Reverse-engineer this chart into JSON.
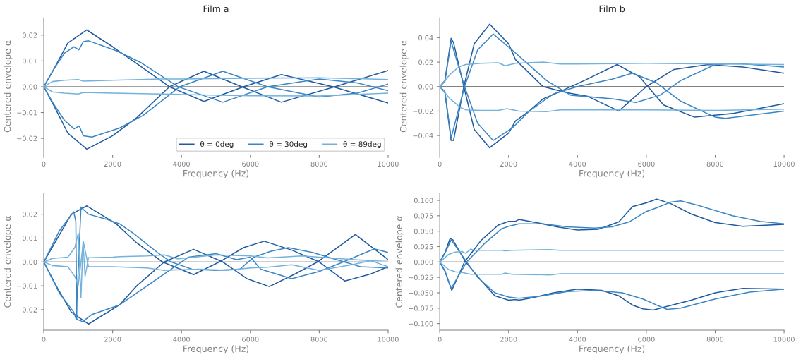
{
  "chart_data": [
    {
      "type": "line",
      "title": "Film a",
      "xlabel": "Frequency (Hz)",
      "ylabel": "Centered envelope α",
      "xlim": [
        0,
        10000
      ],
      "xticks": [
        0,
        2000,
        4000,
        6000,
        8000,
        10000
      ],
      "ylim": [
        -0.0264,
        0.0267
      ],
      "yticks": [
        {
          "value": -0.02,
          "label": "−0.02"
        },
        {
          "value": -0.01,
          "label": "−0.01"
        },
        {
          "value": 0,
          "label": "0.00"
        },
        {
          "value": 0.01,
          "label": "0.01"
        },
        {
          "value": 0.02,
          "label": "0.02"
        }
      ],
      "ref_lines": [
        {
          "axis": "y",
          "value": 0,
          "color": "#808080"
        }
      ],
      "grid": false,
      "legend": "lower right",
      "series": [
        {
          "name": "θ = 0deg",
          "color": "#1f5a9e",
          "x": [
            0,
            300,
            700,
            1250,
            2000,
            2700,
            3650,
            4650,
            5800,
            6900,
            8400,
            10000
          ],
          "values": [
            0,
            0.007,
            0.017,
            0.022,
            0.0155,
            0.009,
            0,
            -0.0057,
            0,
            0.0047,
            0,
            -0.0063
          ]
        },
        {
          "color": "#1f5a9e",
          "x": [
            0,
            300,
            700,
            1250,
            2000,
            2700,
            3650,
            4650,
            5750,
            6900,
            8450,
            10000
          ],
          "values": [
            0,
            -0.0075,
            -0.018,
            -0.0242,
            -0.019,
            -0.012,
            0,
            0.006,
            0,
            -0.006,
            0,
            0.0063
          ]
        },
        {
          "name": "θ = 30deg",
          "color": "#3a86c4",
          "x": [
            0,
            300,
            600,
            870,
            1020,
            1150,
            1300,
            2100,
            2800,
            3900,
            5200,
            6500,
            8000,
            9100,
            10000
          ],
          "values": [
            0,
            0.007,
            0.013,
            0.0155,
            0.0143,
            0.0175,
            0.0178,
            0.014,
            0.0095,
            0,
            -0.006,
            0,
            0.003,
            0.0015,
            -0.0015
          ]
        },
        {
          "color": "#3a86c4",
          "x": [
            0,
            300,
            600,
            880,
            1030,
            1150,
            1400,
            2200,
            2900,
            3950,
            5200,
            6500,
            8000,
            9100,
            10000
          ],
          "values": [
            0,
            -0.007,
            -0.013,
            -0.0163,
            -0.0152,
            -0.019,
            -0.0195,
            -0.016,
            -0.011,
            0,
            0.006,
            0,
            -0.004,
            -0.0025,
            0.001
          ]
        },
        {
          "name": "θ = 89deg",
          "color": "#73b2dc",
          "x": [
            0,
            250,
            600,
            1000,
            1150,
            2000,
            3400,
            4000,
            6000,
            8000,
            10000
          ],
          "values": [
            0,
            0.002,
            0.0025,
            0.0028,
            0.0022,
            0.0025,
            0.003,
            0.003,
            0.0033,
            0.0035,
            0.0028
          ]
        },
        {
          "color": "#73b2dc",
          "x": [
            0,
            250,
            600,
            1000,
            1150,
            2000,
            3400,
            4000,
            6000,
            8000,
            10000
          ],
          "values": [
            0,
            -0.002,
            -0.0025,
            -0.0028,
            -0.0022,
            -0.0025,
            -0.0028,
            -0.003,
            -0.0035,
            -0.0036,
            -0.0025
          ]
        }
      ]
    },
    {
      "type": "line",
      "title": "Film b",
      "xlabel": "Frequency (Hz)",
      "ylabel": "Centered envelope α",
      "xlim": [
        0,
        10000
      ],
      "xticks": [
        0,
        2000,
        4000,
        6000,
        8000,
        10000
      ],
      "ylim": [
        -0.0558,
        0.0562
      ],
      "yticks": [
        {
          "value": -0.04,
          "label": "−0.04"
        },
        {
          "value": -0.02,
          "label": "−0.02"
        },
        {
          "value": 0,
          "label": "0.00"
        },
        {
          "value": 0.02,
          "label": "0.02"
        },
        {
          "value": 0.04,
          "label": "0.04"
        }
      ],
      "ref_lines": [
        {
          "axis": "y",
          "value": 0,
          "color": "#808080"
        }
      ],
      "grid": false,
      "series": [
        {
          "color": "#1f5a9e",
          "x": [
            0,
            150,
            330,
            400,
            700,
            1000,
            1450,
            2000,
            2200,
            2600,
            3000,
            3500,
            4200,
            5150,
            5800,
            6500,
            7400,
            8500,
            10000
          ],
          "values": [
            0,
            0.005,
            0.0395,
            0.036,
            0,
            -0.035,
            -0.05,
            -0.038,
            -0.028,
            -0.02,
            -0.01,
            -0.004,
            0.005,
            0.018,
            0.008,
            -0.015,
            -0.025,
            -0.022,
            -0.014
          ]
        },
        {
          "color": "#1f5a9e",
          "x": [
            0,
            150,
            330,
            400,
            700,
            1000,
            1450,
            2000,
            2200,
            3000,
            3700,
            4300,
            5200,
            6000,
            6800,
            7800,
            8800,
            10000
          ],
          "values": [
            0,
            -0.005,
            -0.044,
            -0.044,
            0,
            0.035,
            0.051,
            0.035,
            0.022,
            0,
            -0.005,
            -0.008,
            -0.02,
            0,
            0.014,
            0.018,
            0.016,
            0.011
          ]
        },
        {
          "color": "#3a86c4",
          "x": [
            0,
            150,
            330,
            720,
            1100,
            1550,
            2100,
            2600,
            3300,
            4000,
            5000,
            5600,
            6300,
            7000,
            8000,
            8300,
            10000
          ],
          "values": [
            0,
            0.004,
            0.037,
            0,
            -0.03,
            -0.044,
            -0.034,
            -0.02,
            -0.006,
            0,
            0.006,
            0.011,
            0.003,
            -0.012,
            -0.025,
            -0.026,
            -0.02
          ]
        },
        {
          "color": "#3a86c4",
          "x": [
            0,
            150,
            330,
            720,
            1100,
            1550,
            2100,
            2500,
            3100,
            3800,
            5000,
            5700,
            6400,
            7000,
            8000,
            8600,
            10000
          ],
          "values": [
            0,
            -0.004,
            -0.042,
            0,
            0.03,
            0.043,
            0.03,
            0.02,
            0.005,
            -0.007,
            -0.01,
            -0.013,
            -0.007,
            0.005,
            0.018,
            0.019,
            0.016
          ]
        },
        {
          "color": "#73b2dc",
          "x": [
            0,
            300,
            550,
            750,
            1200,
            1700,
            1900,
            2200,
            3000,
            3500,
            4000,
            6000,
            8000,
            10000
          ],
          "values": [
            0,
            0.01,
            0.016,
            0.018,
            0.019,
            0.0195,
            0.017,
            0.019,
            0.02,
            0.0185,
            0.0185,
            0.019,
            0.0185,
            0.018
          ]
        },
        {
          "color": "#73b2dc",
          "x": [
            0,
            300,
            600,
            750,
            1200,
            1700,
            1950,
            2300,
            3100,
            3500,
            6000,
            8000,
            10000
          ],
          "values": [
            0,
            -0.01,
            -0.017,
            -0.019,
            -0.0195,
            -0.0195,
            -0.018,
            -0.02,
            -0.0205,
            -0.019,
            -0.019,
            -0.0195,
            -0.0185
          ]
        }
      ]
    },
    {
      "type": "line",
      "xlabel": "Frequency (Hz)",
      "ylabel": "Centered envelope α",
      "xlim": [
        0,
        10000
      ],
      "xticks": [
        0,
        2000,
        4000,
        6000,
        8000,
        10000
      ],
      "ylim": [
        -0.0286,
        0.0288
      ],
      "yticks": [
        {
          "value": -0.02,
          "label": "−0.02"
        },
        {
          "value": -0.01,
          "label": "−0.01"
        },
        {
          "value": 0,
          "label": "0.00"
        },
        {
          "value": 0.01,
          "label": "0.01"
        },
        {
          "value": 0.02,
          "label": "0.02"
        }
      ],
      "ref_lines": [
        {
          "axis": "y",
          "value": 0,
          "color": "#a0a0a0"
        }
      ],
      "grid": false,
      "series": [
        {
          "color": "#1f5a9e",
          "x": [
            0,
            400,
            800,
            1250,
            2100,
            2700,
            3450,
            4350,
            5100,
            5800,
            6400,
            7200,
            8000,
            8750,
            9500,
            10000
          ],
          "values": [
            0,
            0.01,
            0.02,
            0.0235,
            0.016,
            0.008,
            0,
            -0.0053,
            0,
            0.006,
            0.0087,
            0.005,
            0,
            -0.008,
            -0.005,
            -0.002
          ]
        },
        {
          "color": "#1f5a9e",
          "x": [
            0,
            400,
            800,
            1300,
            2200,
            2700,
            3500,
            4350,
            5200,
            5900,
            6550,
            7300,
            7950,
            9050,
            10000
          ],
          "values": [
            0,
            -0.011,
            -0.021,
            -0.026,
            -0.018,
            -0.01,
            0,
            0.0053,
            0,
            -0.007,
            -0.0103,
            -0.005,
            0,
            0.0115,
            0.001
          ]
        },
        {
          "color": "#3a86c4",
          "x": [
            0,
            450,
            870,
            930,
            960,
            1130,
            1400,
            1800,
            2200,
            2800,
            3600,
            4200,
            5000,
            5600,
            6000,
            6300,
            7200,
            8000,
            8700,
            9600,
            10000
          ],
          "values": [
            0,
            0.013,
            0.021,
            0.017,
            -0.024,
            -0.025,
            -0.022,
            -0.02,
            -0.018,
            -0.012,
            -0.004,
            0.002,
            0.0035,
            0.001,
            0.002,
            -0.003,
            -0.007,
            -0.004,
            0,
            0.0055,
            0.004
          ]
        },
        {
          "color": "#3a86c4",
          "x": [
            0,
            450,
            870,
            940,
            1080,
            1300,
            1800,
            2200,
            2600,
            3300,
            3700,
            4300,
            5000,
            5700,
            6100,
            6600,
            7100,
            7800,
            8500,
            9200,
            10000
          ],
          "values": [
            0,
            -0.013,
            -0.021,
            -0.024,
            0.023,
            0.02,
            0.018,
            0.016,
            0.012,
            0.004,
            0,
            -0.003,
            -0.0035,
            -0.003,
            0.002,
            0.0045,
            0.006,
            0.004,
            0.001,
            -0.002,
            -0.0025
          ]
        },
        {
          "color": "#73b2dc",
          "x": [
            0,
            250,
            700,
            900,
            1000,
            1080,
            1140,
            1200,
            1300,
            2000,
            2200,
            3000,
            3500,
            3900,
            5000,
            6000,
            6500,
            7500,
            8500,
            9500,
            10000
          ],
          "values": [
            0,
            0.0015,
            0.002,
            0.006,
            0.012,
            -0.015,
            0.0085,
            -0.006,
            0.0018,
            0.002,
            0.0022,
            0.0025,
            0.003,
            0.0013,
            0.003,
            0.0025,
            0.0017,
            0.0025,
            0.0015,
            0.0005,
            0.0008
          ]
        },
        {
          "color": "#73b2dc",
          "x": [
            0,
            250,
            700,
            900,
            1000,
            1150,
            1300,
            2000,
            3000,
            3500,
            4500,
            5300,
            6000,
            6500,
            7200,
            8000,
            9000,
            9500,
            10000
          ],
          "values": [
            0,
            -0.0015,
            -0.002,
            -0.006,
            -0.01,
            0.0085,
            -0.002,
            -0.002,
            -0.0025,
            -0.0035,
            -0.003,
            -0.0035,
            -0.0025,
            -0.0022,
            -0.0012,
            -0.0035,
            -0.001,
            0.0005,
            -0.002
          ]
        }
      ]
    },
    {
      "type": "line",
      "xlabel": "Frequency (Hz)",
      "ylabel": "Centered envelope α",
      "xlim": [
        0,
        10000
      ],
      "xticks": [
        0,
        2000,
        4000,
        6000,
        8000,
        10000
      ],
      "ylim": [
        -0.1108,
        0.1116
      ],
      "yticks": [
        {
          "value": -0.1,
          "label": "−0.100"
        },
        {
          "value": -0.075,
          "label": "−0.075"
        },
        {
          "value": -0.05,
          "label": "−0.050"
        },
        {
          "value": -0.025,
          "label": "−0.025"
        },
        {
          "value": 0,
          "label": "0.000"
        },
        {
          "value": 0.025,
          "label": "0.025"
        },
        {
          "value": 0.05,
          "label": "0.050"
        },
        {
          "value": 0.075,
          "label": "0.075"
        },
        {
          "value": 0.1,
          "label": "0.100"
        }
      ],
      "ref_lines": [
        {
          "axis": "y",
          "value": 0,
          "color": "#a0a0a0"
        }
      ],
      "grid": false,
      "series": [
        {
          "color": "#1f5a9e",
          "x": [
            0,
            150,
            300,
            380,
            750,
            1200,
            1600,
            2000,
            2200,
            2300,
            2700,
            3300,
            4000,
            4700,
            5200,
            5600,
            5900,
            6200,
            6600,
            7300,
            8000,
            8800,
            10000
          ],
          "values": [
            0,
            0.015,
            0.038,
            0.036,
            0,
            -0.03,
            -0.055,
            -0.062,
            -0.061,
            -0.062,
            -0.058,
            -0.05,
            -0.044,
            -0.046,
            -0.055,
            -0.07,
            -0.076,
            -0.078,
            -0.072,
            -0.062,
            -0.05,
            -0.043,
            -0.044
          ]
        },
        {
          "color": "#1f5a9e",
          "x": [
            0,
            150,
            350,
            720,
            1200,
            1700,
            2000,
            2200,
            2300,
            2800,
            3400,
            4000,
            4600,
            5200,
            5600,
            6000,
            6300,
            6700,
            7300,
            8000,
            8800,
            10000
          ],
          "values": [
            0,
            -0.015,
            -0.046,
            0,
            0.035,
            0.06,
            0.066,
            0.066,
            0.069,
            0.064,
            0.057,
            0.052,
            0.053,
            0.065,
            0.09,
            0.096,
            0.102,
            0.095,
            0.078,
            0.064,
            0.058,
            0.061
          ]
        },
        {
          "color": "#3a86c4",
          "x": [
            0,
            150,
            330,
            780,
            1100,
            1600,
            2000,
            2300,
            3000,
            3700,
            4500,
            5300,
            5900,
            6300,
            6600,
            7000,
            8000,
            9000,
            10000
          ],
          "values": [
            0,
            0.014,
            0.036,
            0,
            -0.025,
            -0.05,
            -0.057,
            -0.059,
            -0.055,
            -0.048,
            -0.046,
            -0.05,
            -0.06,
            -0.07,
            -0.077,
            -0.075,
            -0.06,
            -0.049,
            -0.044
          ]
        },
        {
          "color": "#3a86c4",
          "x": [
            0,
            150,
            330,
            780,
            1300,
            1800,
            2000,
            2300,
            3000,
            3700,
            4500,
            5000,
            5500,
            6000,
            6300,
            6700,
            7000,
            7500,
            8500,
            9300,
            10000
          ],
          "values": [
            0,
            -0.014,
            -0.043,
            0,
            0.03,
            0.054,
            0.058,
            0.062,
            0.062,
            0.057,
            0.055,
            0.057,
            0.065,
            0.082,
            0.088,
            0.097,
            0.099,
            0.092,
            0.075,
            0.066,
            0.062
          ]
        },
        {
          "color": "#73b2dc",
          "x": [
            0,
            250,
            450,
            650,
            750,
            900,
            1000,
            1800,
            1900,
            2100,
            3200,
            3500,
            5000,
            7000,
            9000,
            10000
          ],
          "values": [
            0,
            0.012,
            0.016,
            0.017,
            0.014,
            0.021,
            0.019,
            0.019,
            0.018,
            0.019,
            0.02,
            0.019,
            0.019,
            0.019,
            0.019,
            0.019
          ]
        },
        {
          "color": "#73b2dc",
          "x": [
            0,
            250,
            450,
            650,
            900,
            1800,
            1900,
            2100,
            3200,
            3500,
            5000,
            8000,
            10000
          ],
          "values": [
            0,
            -0.012,
            -0.016,
            -0.017,
            -0.02,
            -0.02,
            -0.018,
            -0.02,
            -0.021,
            -0.019,
            -0.019,
            -0.019,
            -0.019
          ]
        }
      ]
    }
  ]
}
